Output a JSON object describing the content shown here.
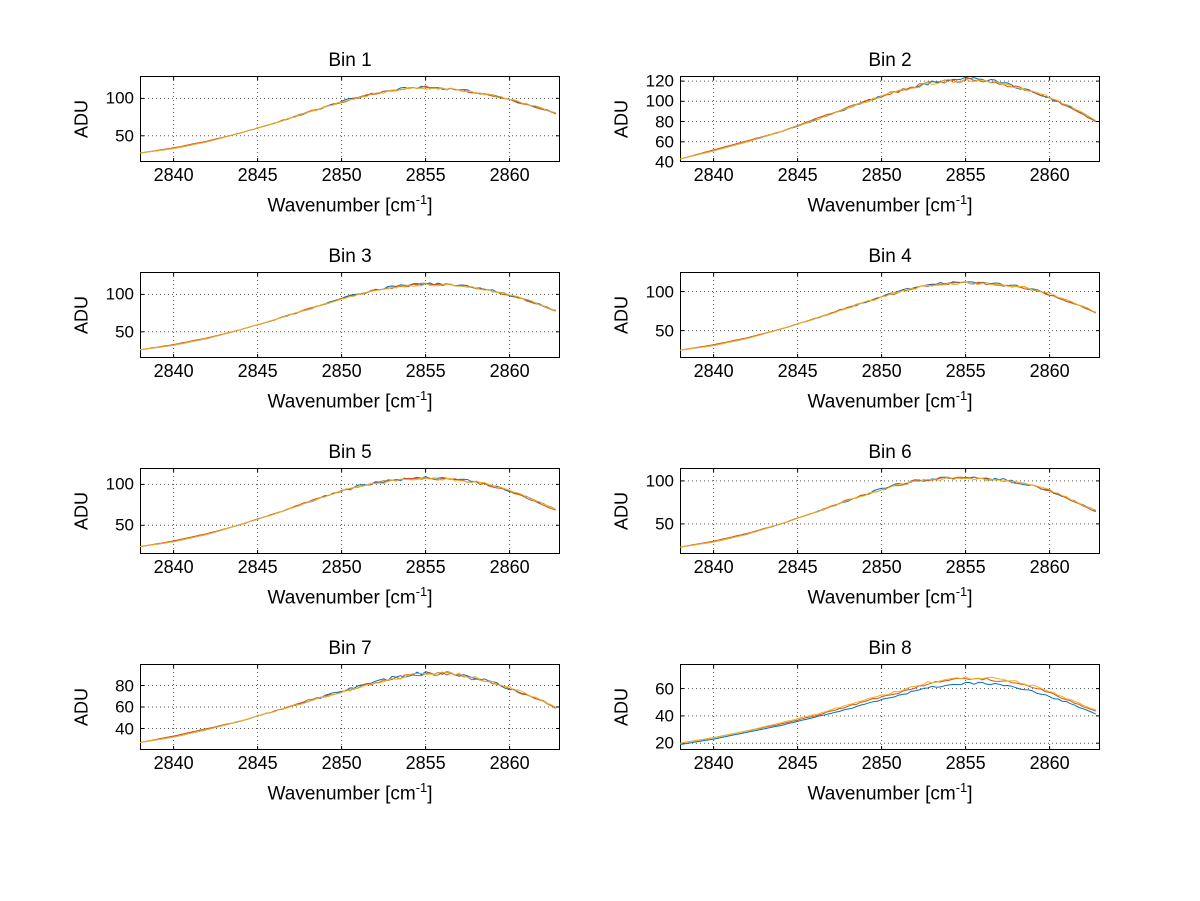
{
  "figure": {
    "background": "#ffffff"
  },
  "chart_data": [
    {
      "type": "line",
      "title": "Bin 1",
      "xlabel": "Wavenumber [cm⁻¹]",
      "ylabel": "ADU",
      "xlim": [
        2838,
        2863
      ],
      "ylim": [
        15,
        130
      ],
      "xticks": [
        2840,
        2845,
        2850,
        2855,
        2860
      ],
      "yticks": [
        50,
        100
      ],
      "grid": true,
      "legend": "none",
      "noise": 2.2,
      "x": [
        2838,
        2840,
        2842,
        2844,
        2846,
        2848,
        2850,
        2851,
        2852,
        2853,
        2854,
        2855,
        2856,
        2857,
        2858,
        2859,
        2860,
        2861,
        2862,
        2862.8
      ],
      "series": [
        {
          "name": "series-blue",
          "color": "#0072BD",
          "values": [
            27,
            33,
            42,
            54,
            67,
            81,
            96,
            102,
            107,
            111,
            114,
            115,
            114,
            112,
            108,
            104,
            99,
            92,
            86,
            80
          ]
        },
        {
          "name": "series-red",
          "color": "#D95319",
          "values": [
            27,
            34,
            43,
            54,
            67,
            82,
            95,
            101,
            107,
            110,
            113,
            115,
            113,
            111,
            108,
            103,
            98,
            92,
            85,
            79
          ]
        },
        {
          "name": "series-yellow",
          "color": "#EDB120",
          "values": [
            27,
            33,
            42,
            54,
            67,
            81,
            95,
            101,
            106,
            110,
            113,
            114,
            113,
            111,
            108,
            104,
            99,
            93,
            86,
            80
          ]
        }
      ]
    },
    {
      "type": "line",
      "title": "Bin 2",
      "xlabel": "Wavenumber [cm⁻¹]",
      "ylabel": "ADU",
      "xlim": [
        2838,
        2863
      ],
      "ylim": [
        40,
        125
      ],
      "xticks": [
        2840,
        2845,
        2850,
        2855,
        2860
      ],
      "yticks": [
        40,
        60,
        80,
        100,
        120
      ],
      "grid": true,
      "legend": "none",
      "noise": 2.2,
      "x": [
        2838,
        2840,
        2842,
        2844,
        2846,
        2848,
        2850,
        2851,
        2852,
        2853,
        2854,
        2855,
        2856,
        2857,
        2858,
        2859,
        2860,
        2861,
        2862,
        2862.8
      ],
      "series": [
        {
          "name": "series-blue",
          "color": "#0072BD",
          "values": [
            43,
            51,
            60,
            70,
            81,
            93,
            106,
            111,
            115,
            119,
            121,
            122,
            121,
            119,
            114,
            110,
            103,
            96,
            88,
            80
          ]
        },
        {
          "name": "series-red",
          "color": "#D95319",
          "values": [
            43,
            52,
            61,
            70,
            82,
            94,
            105,
            110,
            115,
            118,
            120,
            121,
            120,
            117,
            114,
            109,
            103,
            96,
            87,
            79
          ]
        },
        {
          "name": "series-yellow",
          "color": "#EDB120",
          "values": [
            43,
            51,
            60,
            70,
            81,
            93,
            105,
            110,
            114,
            118,
            120,
            121,
            120,
            118,
            114,
            110,
            104,
            97,
            88,
            80
          ]
        }
      ]
    },
    {
      "type": "line",
      "title": "Bin 3",
      "xlabel": "Wavenumber [cm⁻¹]",
      "ylabel": "ADU",
      "xlim": [
        2838,
        2863
      ],
      "ylim": [
        15,
        130
      ],
      "xticks": [
        2840,
        2845,
        2850,
        2855,
        2860
      ],
      "yticks": [
        50,
        100
      ],
      "grid": true,
      "legend": "none",
      "noise": 2.2,
      "x": [
        2838,
        2840,
        2842,
        2844,
        2846,
        2848,
        2850,
        2851,
        2852,
        2853,
        2854,
        2855,
        2856,
        2857,
        2858,
        2859,
        2860,
        2861,
        2862,
        2862.8
      ],
      "series": [
        {
          "name": "series-blue",
          "color": "#0072BD",
          "values": [
            26,
            32,
            41,
            53,
            66,
            80,
            95,
            101,
            106,
            110,
            113,
            114,
            114,
            112,
            109,
            105,
            99,
            93,
            85,
            78
          ]
        },
        {
          "name": "series-red",
          "color": "#D95319",
          "values": [
            26,
            33,
            42,
            53,
            66,
            81,
            94,
            100,
            106,
            109,
            112,
            114,
            113,
            111,
            109,
            104,
            99,
            92,
            84,
            77
          ]
        },
        {
          "name": "series-yellow",
          "color": "#EDB120",
          "values": [
            26,
            32,
            41,
            53,
            66,
            80,
            94,
            100,
            105,
            109,
            112,
            113,
            113,
            112,
            109,
            105,
            100,
            93,
            85,
            78
          ]
        }
      ]
    },
    {
      "type": "line",
      "title": "Bin 4",
      "xlabel": "Wavenumber [cm⁻¹]",
      "ylabel": "ADU",
      "xlim": [
        2838,
        2863
      ],
      "ylim": [
        15,
        125
      ],
      "xticks": [
        2840,
        2845,
        2850,
        2855,
        2860
      ],
      "yticks": [
        50,
        100
      ],
      "grid": true,
      "legend": "none",
      "noise": 2.2,
      "x": [
        2838,
        2840,
        2842,
        2844,
        2846,
        2848,
        2850,
        2851,
        2852,
        2853,
        2854,
        2855,
        2856,
        2857,
        2858,
        2859,
        2860,
        2861,
        2862,
        2862.8
      ],
      "series": [
        {
          "name": "series-blue",
          "color": "#0072BD",
          "values": [
            25,
            31,
            40,
            52,
            65,
            79,
            94,
            100,
            105,
            109,
            111,
            112,
            111,
            110,
            107,
            103,
            96,
            89,
            81,
            73
          ]
        },
        {
          "name": "series-red",
          "color": "#D95319",
          "values": [
            25,
            32,
            41,
            52,
            65,
            80,
            93,
            99,
            105,
            108,
            111,
            112,
            110,
            109,
            106,
            102,
            96,
            88,
            80,
            72
          ]
        },
        {
          "name": "series-yellow",
          "color": "#EDB120",
          "values": [
            25,
            31,
            40,
            52,
            65,
            79,
            93,
            99,
            104,
            108,
            110,
            111,
            110,
            109,
            107,
            103,
            97,
            89,
            81,
            73
          ]
        }
      ]
    },
    {
      "type": "line",
      "title": "Bin 5",
      "xlabel": "Wavenumber [cm⁻¹]",
      "ylabel": "ADU",
      "xlim": [
        2838,
        2863
      ],
      "ylim": [
        15,
        120
      ],
      "xticks": [
        2840,
        2845,
        2850,
        2855,
        2860
      ],
      "yticks": [
        50,
        100
      ],
      "grid": true,
      "legend": "none",
      "noise": 2.2,
      "x": [
        2838,
        2840,
        2842,
        2844,
        2846,
        2848,
        2850,
        2851,
        2852,
        2853,
        2854,
        2855,
        2856,
        2857,
        2858,
        2859,
        2860,
        2861,
        2862,
        2862.8
      ],
      "series": [
        {
          "name": "series-blue",
          "color": "#0072BD",
          "values": [
            24,
            30,
            39,
            51,
            64,
            78,
            93,
            98,
            102,
            105,
            107,
            108,
            107,
            106,
            103,
            99,
            92,
            85,
            76,
            69
          ]
        },
        {
          "name": "series-red",
          "color": "#D95319",
          "values": [
            24,
            31,
            40,
            51,
            64,
            79,
            92,
            97,
            102,
            104,
            106,
            108,
            106,
            105,
            102,
            98,
            92,
            84,
            75,
            68
          ]
        },
        {
          "name": "series-yellow",
          "color": "#EDB120",
          "values": [
            24,
            30,
            39,
            51,
            64,
            78,
            92,
            97,
            101,
            104,
            106,
            107,
            106,
            105,
            103,
            99,
            93,
            85,
            76,
            69
          ]
        }
      ]
    },
    {
      "type": "line",
      "title": "Bin 6",
      "xlabel": "Wavenumber [cm⁻¹]",
      "ylabel": "ADU",
      "xlim": [
        2838,
        2863
      ],
      "ylim": [
        15,
        115
      ],
      "xticks": [
        2840,
        2845,
        2850,
        2855,
        2860
      ],
      "yticks": [
        50,
        100
      ],
      "grid": true,
      "legend": "none",
      "noise": 2.2,
      "x": [
        2838,
        2840,
        2842,
        2844,
        2846,
        2848,
        2850,
        2851,
        2852,
        2853,
        2854,
        2855,
        2856,
        2857,
        2858,
        2859,
        2860,
        2861,
        2862,
        2862.8
      ],
      "series": [
        {
          "name": "series-blue",
          "color": "#0072BD",
          "values": [
            23,
            29,
            38,
            50,
            63,
            77,
            91,
            96,
            100,
            102,
            104,
            104,
            103,
            102,
            99,
            95,
            88,
            81,
            72,
            65
          ]
        },
        {
          "name": "series-red",
          "color": "#D95319",
          "values": [
            23,
            30,
            39,
            50,
            63,
            78,
            90,
            95,
            100,
            101,
            103,
            104,
            102,
            101,
            98,
            94,
            88,
            80,
            71,
            64
          ]
        },
        {
          "name": "series-yellow",
          "color": "#EDB120",
          "values": [
            23,
            29,
            38,
            50,
            63,
            77,
            90,
            95,
            99,
            101,
            103,
            103,
            102,
            101,
            99,
            95,
            89,
            81,
            72,
            65
          ]
        }
      ]
    },
    {
      "type": "line",
      "title": "Bin 7",
      "xlabel": "Wavenumber [cm⁻¹]",
      "ylabel": "ADU",
      "xlim": [
        2838,
        2863
      ],
      "ylim": [
        20,
        100
      ],
      "xticks": [
        2840,
        2845,
        2850,
        2855,
        2860
      ],
      "yticks": [
        40,
        60,
        80
      ],
      "grid": true,
      "legend": "none",
      "noise": 2.2,
      "x": [
        2838,
        2840,
        2842,
        2844,
        2846,
        2848,
        2850,
        2851,
        2852,
        2853,
        2854,
        2855,
        2856,
        2857,
        2858,
        2859,
        2860,
        2861,
        2862,
        2862.8
      ],
      "series": [
        {
          "name": "series-blue",
          "color": "#0072BD",
          "values": [
            27,
            32,
            39,
            47,
            56,
            65,
            75,
            79,
            83,
            87,
            90,
            92,
            92,
            90,
            87,
            83,
            77,
            72,
            66,
            59
          ]
        },
        {
          "name": "series-red",
          "color": "#D95319",
          "values": [
            27,
            33,
            40,
            47,
            56,
            66,
            74,
            78,
            83,
            86,
            89,
            91,
            91,
            89,
            86,
            82,
            77,
            71,
            65,
            58
          ]
        },
        {
          "name": "series-yellow",
          "color": "#EDB120",
          "values": [
            27,
            32,
            39,
            47,
            56,
            65,
            74,
            78,
            82,
            86,
            89,
            91,
            91,
            90,
            87,
            83,
            78,
            72,
            66,
            59
          ]
        }
      ]
    },
    {
      "type": "line",
      "title": "Bin 8",
      "xlabel": "Wavenumber [cm⁻¹]",
      "ylabel": "ADU",
      "xlim": [
        2838,
        2863
      ],
      "ylim": [
        15,
        78
      ],
      "xticks": [
        2840,
        2845,
        2850,
        2855,
        2860
      ],
      "yticks": [
        20,
        40,
        60
      ],
      "grid": true,
      "legend": "none",
      "noise": 1.5,
      "x": [
        2838,
        2840,
        2842,
        2844,
        2846,
        2848,
        2850,
        2851,
        2852,
        2853,
        2854,
        2855,
        2856,
        2857,
        2858,
        2859,
        2860,
        2861,
        2862,
        2862.8
      ],
      "series": [
        {
          "name": "series-blue",
          "color": "#0072BD",
          "values": [
            19,
            23,
            28,
            33,
            39,
            45,
            52,
            55,
            58,
            61,
            63,
            64,
            64,
            63,
            61,
            58,
            54,
            50,
            45,
            41
          ]
        },
        {
          "name": "series-red",
          "color": "#D95319",
          "values": [
            20,
            24,
            29,
            34,
            40,
            47,
            54,
            57,
            61,
            64,
            66,
            67,
            67,
            66,
            64,
            61,
            57,
            52,
            47,
            43
          ]
        },
        {
          "name": "series-yellow",
          "color": "#EDB120",
          "values": [
            20,
            24,
            29,
            35,
            41,
            48,
            55,
            58,
            62,
            65,
            67,
            68,
            68,
            67,
            65,
            62,
            58,
            53,
            48,
            44
          ]
        }
      ]
    }
  ]
}
